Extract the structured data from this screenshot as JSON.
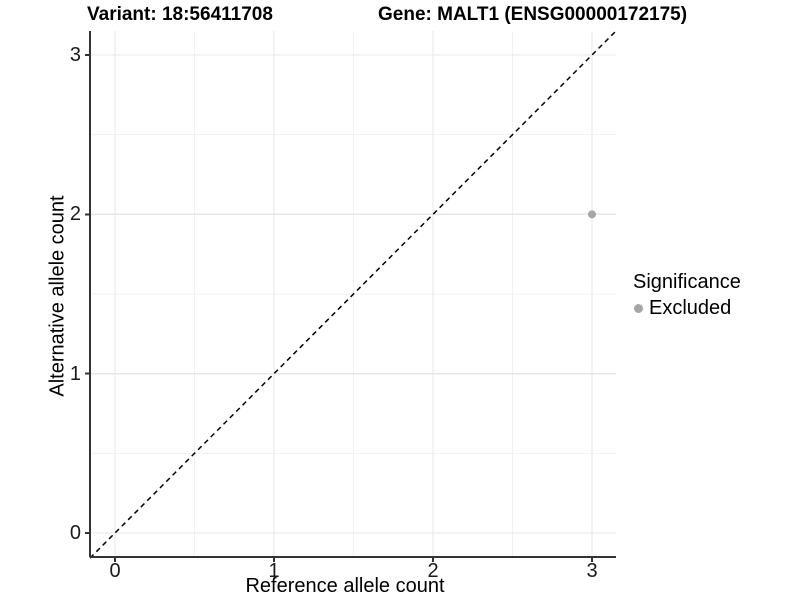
{
  "titles": {
    "variant": "Variant: 18:56411708",
    "gene": "Gene: MALT1 (ENSG00000172175)"
  },
  "axes": {
    "x": {
      "label": "Reference allele count",
      "tick_labels": [
        "0",
        "1",
        "2",
        "3"
      ]
    },
    "y": {
      "label": "Alternative allele count",
      "tick_labels": [
        "0",
        "1",
        "2",
        "3"
      ]
    }
  },
  "legend": {
    "title": "Significance",
    "items": [
      {
        "label": "Excluded",
        "color": "#a6a6a6"
      }
    ]
  },
  "colors": {
    "background": "#ffffff",
    "grid_major": "#e7e7e7",
    "grid_minor": "#f2f2f2",
    "axis_line": "#333333",
    "tick_text": "#1a1a1a",
    "identity_line": "#000000",
    "point_excluded": "#a6a6a6"
  },
  "chart_data": {
    "type": "scatter",
    "title": "Variant: 18:56411708    Gene: MALT1 (ENSG00000172175)",
    "xlabel": "Reference allele count",
    "ylabel": "Alternative allele count",
    "xlim": [
      -0.157,
      3.151
    ],
    "ylim": [
      -0.157,
      3.151
    ],
    "x_ticks": [
      0,
      1,
      2,
      3
    ],
    "y_ticks": [
      0,
      1,
      2,
      3
    ],
    "grid": "major+minor",
    "legend_position": "right",
    "series": [
      {
        "name": "Excluded",
        "color": "#a6a6a6",
        "points": [
          {
            "x": 3,
            "y": 2
          }
        ]
      }
    ],
    "reference_line": {
      "type": "identity",
      "slope": 1,
      "intercept": 0,
      "style": "dashed",
      "color": "#000000"
    }
  }
}
